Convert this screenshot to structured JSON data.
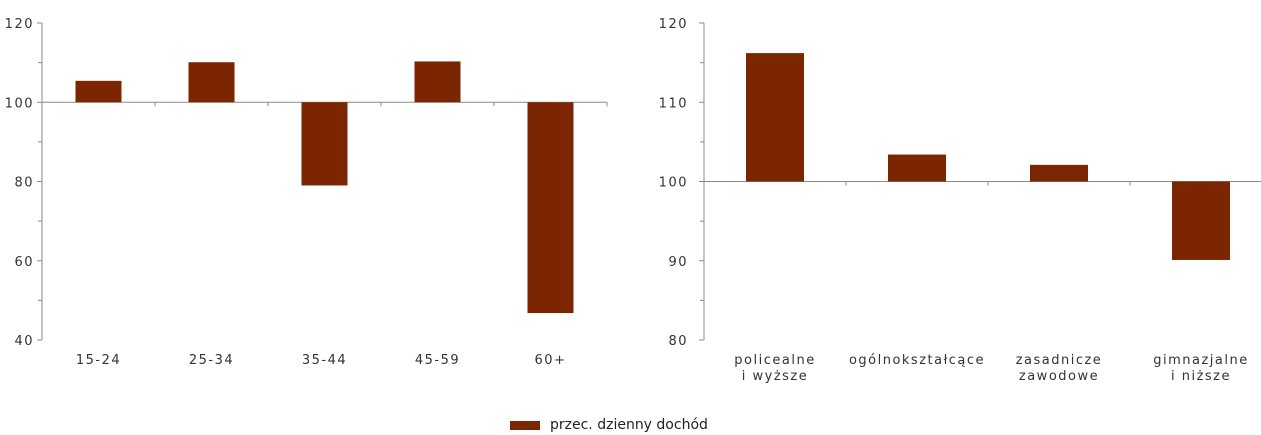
{
  "colors": {
    "bar": "#7B2600",
    "axis": "#8a8a8a",
    "text": "#333333"
  },
  "legend": {
    "label": "przec. dzienny dochód"
  },
  "chart_data": [
    {
      "type": "bar",
      "baseline": 100,
      "ylim": [
        40,
        120
      ],
      "yticks": [
        40,
        60,
        80,
        100,
        120
      ],
      "categories": [
        [
          "15-24"
        ],
        [
          "25-34"
        ],
        [
          "35-44"
        ],
        [
          "45-59"
        ],
        [
          "60+"
        ]
      ],
      "series": [
        {
          "name": "przec. dzienny dochód",
          "values": [
            105.4,
            110.1,
            79,
            110.3,
            46.8
          ]
        }
      ],
      "grid": false
    },
    {
      "type": "bar",
      "baseline": 100,
      "ylim": [
        80,
        120
      ],
      "yticks": [
        80,
        90,
        100,
        110,
        120
      ],
      "categories": [
        [
          "policealne",
          "i wyższe"
        ],
        [
          "ogólnokształcące"
        ],
        [
          "zasadnicze",
          "zawodowe"
        ],
        [
          "gimnazjalne",
          "i niższe"
        ]
      ],
      "series": [
        {
          "name": "przec. dzienny dochód",
          "values": [
            116.2,
            103.4,
            102.1,
            90.1
          ]
        }
      ],
      "grid": false
    }
  ]
}
